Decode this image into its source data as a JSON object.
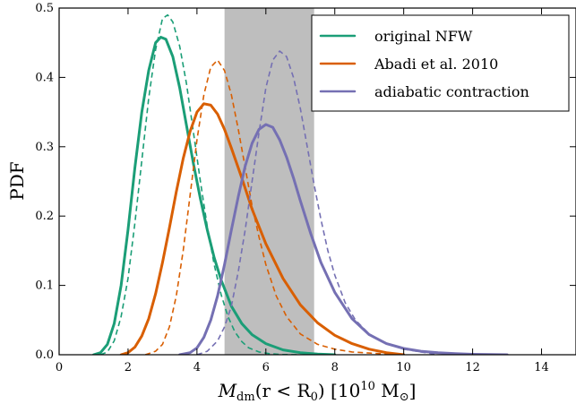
{
  "chart_data": {
    "type": "line",
    "xlabel_parts": {
      "m": "M",
      "sub1": "dm",
      "mid": "(r < R",
      "sub2": "0",
      "close": ") [10",
      "sup": "10",
      "unit": " M",
      "sub3": "⊙",
      "end": "]"
    },
    "ylabel": "PDF",
    "xlim": [
      0,
      15
    ],
    "ylim": [
      0,
      0.5
    ],
    "xticks": [
      0,
      2,
      4,
      6,
      8,
      10,
      12,
      14
    ],
    "xtick_labels": [
      "0",
      "2",
      "4",
      "6",
      "8",
      "10",
      "12",
      "14"
    ],
    "yticks": [
      0.0,
      0.1,
      0.2,
      0.3,
      0.4,
      0.5
    ],
    "ytick_labels": [
      "0.0",
      "0.1",
      "0.2",
      "0.3",
      "0.4",
      "0.5"
    ],
    "grid": false,
    "legend_position": "top-right",
    "shaded_band": {
      "x0": 4.8,
      "x1": 7.4,
      "color": "#bebebe"
    },
    "series": [
      {
        "name": "original NFW",
        "color": "#1b9e77",
        "solid": {
          "x": [
            1.0,
            1.2,
            1.4,
            1.6,
            1.8,
            2.0,
            2.2,
            2.4,
            2.6,
            2.8,
            2.95,
            3.1,
            3.3,
            3.5,
            3.7,
            3.9,
            4.1,
            4.3,
            4.5,
            4.7,
            5.0,
            5.3,
            5.6,
            6.0,
            6.5,
            7.0,
            7.5,
            8.0
          ],
          "y": [
            0.0,
            0.003,
            0.015,
            0.045,
            0.1,
            0.18,
            0.27,
            0.35,
            0.41,
            0.45,
            0.458,
            0.455,
            0.43,
            0.385,
            0.33,
            0.275,
            0.225,
            0.18,
            0.14,
            0.108,
            0.07,
            0.045,
            0.029,
            0.016,
            0.007,
            0.003,
            0.001,
            0.0
          ]
        },
        "dashed": {
          "x": [
            1.2,
            1.4,
            1.6,
            1.8,
            2.0,
            2.2,
            2.4,
            2.6,
            2.8,
            3.0,
            3.15,
            3.3,
            3.5,
            3.7,
            3.9,
            4.1,
            4.3,
            4.5,
            4.7,
            4.9,
            5.1,
            5.3,
            5.5,
            5.8,
            6.1,
            6.5,
            7.0
          ],
          "y": [
            0.0,
            0.004,
            0.02,
            0.055,
            0.11,
            0.19,
            0.28,
            0.37,
            0.44,
            0.485,
            0.49,
            0.48,
            0.445,
            0.39,
            0.32,
            0.25,
            0.185,
            0.13,
            0.087,
            0.055,
            0.033,
            0.019,
            0.01,
            0.004,
            0.0015,
            0.0003,
            0.0
          ]
        }
      },
      {
        "name": "Abadi et al. 2010",
        "color": "#d95f02",
        "solid": {
          "x": [
            1.8,
            2.0,
            2.2,
            2.4,
            2.6,
            2.8,
            3.0,
            3.2,
            3.4,
            3.6,
            3.8,
            4.0,
            4.2,
            4.4,
            4.6,
            4.8,
            5.0,
            5.3,
            5.6,
            6.0,
            6.5,
            7.0,
            7.5,
            8.0,
            8.5,
            9.0,
            9.5,
            10.0
          ],
          "y": [
            0.0,
            0.003,
            0.011,
            0.027,
            0.052,
            0.088,
            0.133,
            0.183,
            0.235,
            0.283,
            0.322,
            0.35,
            0.362,
            0.36,
            0.347,
            0.325,
            0.298,
            0.255,
            0.21,
            0.16,
            0.11,
            0.072,
            0.046,
            0.028,
            0.016,
            0.008,
            0.003,
            0.0
          ]
        },
        "dashed": {
          "x": [
            2.5,
            2.8,
            3.0,
            3.2,
            3.4,
            3.6,
            3.8,
            4.0,
            4.2,
            4.4,
            4.6,
            4.8,
            5.0,
            5.2,
            5.4,
            5.6,
            5.8,
            6.0,
            6.3,
            6.6,
            7.0,
            7.5,
            8.0,
            8.5,
            9.0,
            9.5,
            10.0
          ],
          "y": [
            0.0,
            0.005,
            0.015,
            0.04,
            0.085,
            0.15,
            0.23,
            0.31,
            0.375,
            0.415,
            0.425,
            0.41,
            0.375,
            0.325,
            0.27,
            0.215,
            0.17,
            0.13,
            0.085,
            0.055,
            0.03,
            0.015,
            0.008,
            0.004,
            0.0025,
            0.001,
            0.0
          ]
        }
      },
      {
        "name": "adiabatic contraction",
        "color": "#7570b3",
        "solid": {
          "x": [
            3.5,
            3.8,
            4.0,
            4.2,
            4.4,
            4.6,
            4.8,
            5.0,
            5.2,
            5.4,
            5.6,
            5.8,
            6.0,
            6.2,
            6.4,
            6.6,
            6.8,
            7.0,
            7.3,
            7.6,
            8.0,
            8.5,
            9.0,
            9.5,
            10.0,
            10.5,
            11.0,
            11.5,
            12.0,
            12.5,
            13.0
          ],
          "y": [
            0.0,
            0.003,
            0.01,
            0.025,
            0.05,
            0.085,
            0.13,
            0.18,
            0.228,
            0.272,
            0.305,
            0.325,
            0.332,
            0.328,
            0.31,
            0.285,
            0.255,
            0.222,
            0.175,
            0.133,
            0.09,
            0.052,
            0.029,
            0.016,
            0.009,
            0.005,
            0.003,
            0.0015,
            0.0007,
            0.0003,
            0.0
          ]
        },
        "dashed": {
          "x": [
            4.0,
            4.3,
            4.6,
            4.8,
            5.0,
            5.2,
            5.4,
            5.6,
            5.8,
            6.0,
            6.2,
            6.4,
            6.6,
            6.8,
            7.0,
            7.2,
            7.4,
            7.6,
            7.8,
            8.0,
            8.3,
            8.6,
            9.0,
            9.5,
            10.0,
            10.5,
            11.0
          ],
          "y": [
            0.0,
            0.005,
            0.02,
            0.04,
            0.07,
            0.12,
            0.18,
            0.25,
            0.32,
            0.385,
            0.425,
            0.438,
            0.43,
            0.4,
            0.355,
            0.3,
            0.245,
            0.195,
            0.15,
            0.115,
            0.075,
            0.05,
            0.03,
            0.016,
            0.008,
            0.004,
            0.0
          ]
        }
      }
    ]
  }
}
